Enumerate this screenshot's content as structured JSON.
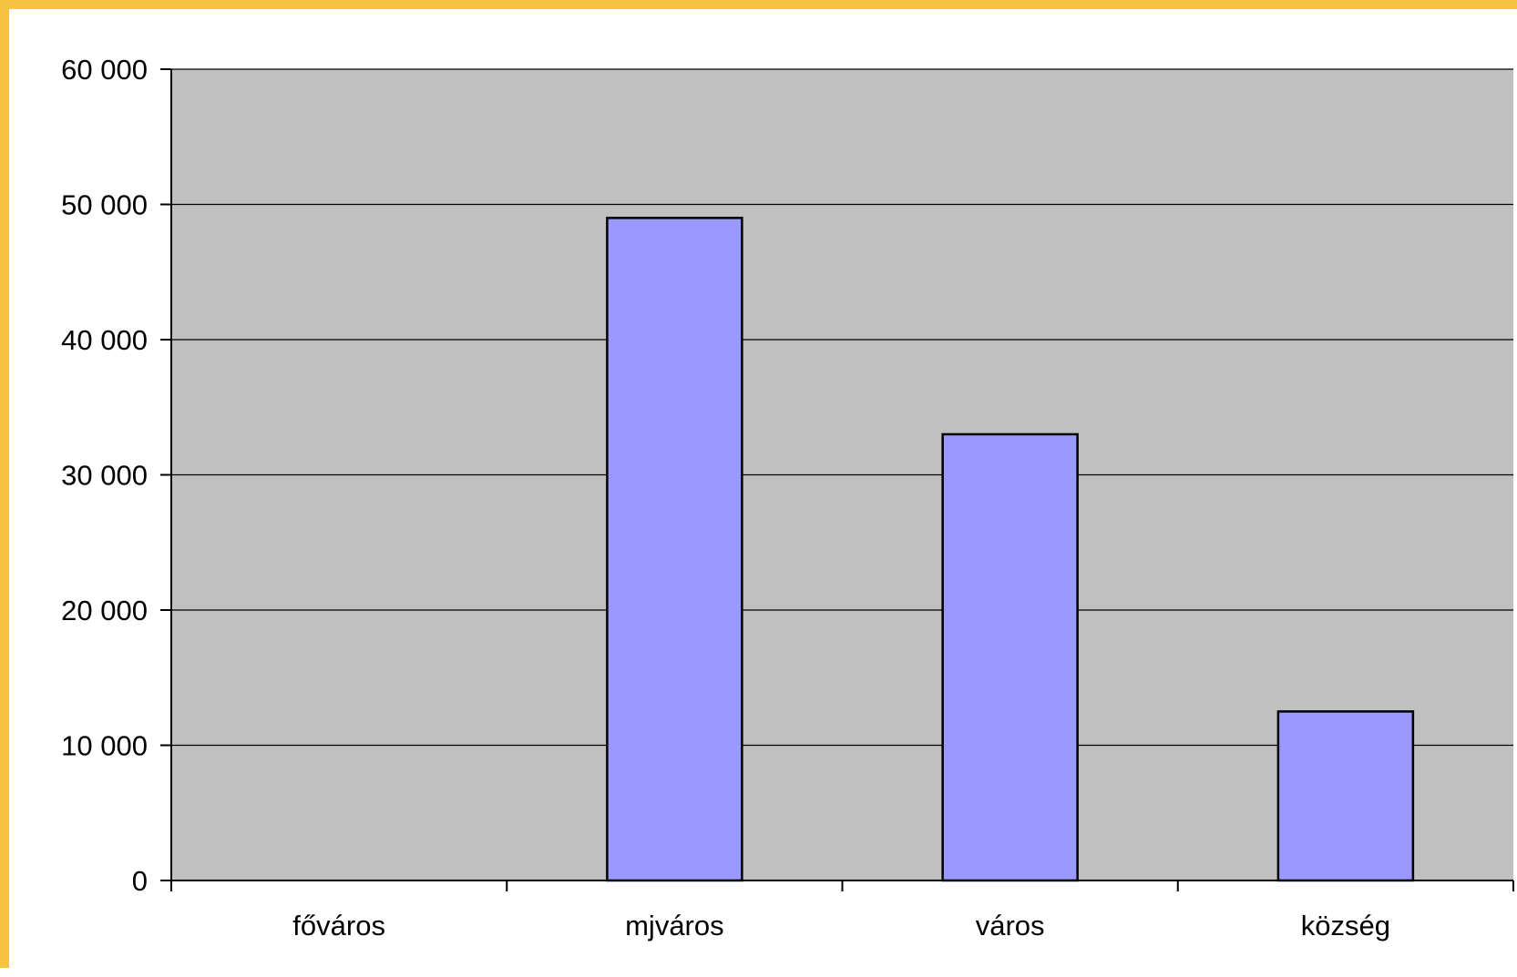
{
  "chart_data": {
    "type": "bar",
    "categories": [
      "főváros",
      "mjváros",
      "város",
      "község"
    ],
    "values": [
      0,
      49000,
      33000,
      12500
    ],
    "ylim": [
      0,
      60000
    ],
    "yticks": [
      0,
      10000,
      20000,
      30000,
      40000,
      50000,
      60000
    ],
    "ytick_labels": [
      "0",
      "10 000",
      "20 000",
      "30 000",
      "40 000",
      "50 000",
      "60 000"
    ],
    "grid": true,
    "legend": "none",
    "colors": {
      "bar_fill": "#9999FF",
      "bar_stroke": "#000000",
      "plot_background": "#C0C0C0",
      "frame_border": "#F5C342",
      "gridline": "#000000"
    }
  }
}
